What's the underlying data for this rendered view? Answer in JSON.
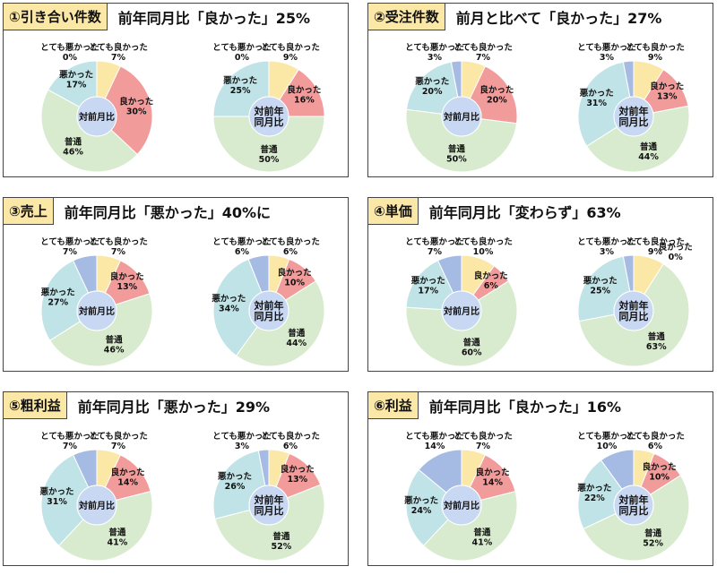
{
  "colors": {
    "very_good": "#fbe7a6",
    "good": "#f29b9b",
    "normal": "#d9ebcf",
    "bad": "#bfe3e6",
    "very_bad": "#a6bbe3",
    "center": "#c9d8f2"
  },
  "categories": [
    "とても良かった",
    "良かった",
    "普通",
    "悪かった",
    "とても悪かった"
  ],
  "center_labels": {
    "prev_year": [
      "対前年",
      "同月比"
    ],
    "prev_month": [
      "対前月比"
    ]
  },
  "panels": [
    {
      "tag": "①引き合い件数",
      "headline": "前年同月比「良かった」25%",
      "charts": [
        {
          "center": "prev_month",
          "values": [
            7,
            30,
            46,
            17,
            0
          ]
        },
        {
          "center": "prev_year",
          "values": [
            9,
            16,
            50,
            25,
            0
          ]
        }
      ]
    },
    {
      "tag": "②受注件数",
      "headline": "前月と比べて「良かった」27%",
      "charts": [
        {
          "center": "prev_month",
          "values": [
            7,
            20,
            50,
            20,
            3
          ]
        },
        {
          "center": "prev_year",
          "values": [
            9,
            13,
            44,
            31,
            3
          ]
        }
      ]
    },
    {
      "tag": "③売上",
      "headline": "前年同月比「悪かった」40%に",
      "charts": [
        {
          "center": "prev_month",
          "values": [
            7,
            13,
            46,
            27,
            7
          ]
        },
        {
          "center": "prev_year",
          "values": [
            6,
            10,
            44,
            34,
            6
          ]
        }
      ]
    },
    {
      "tag": "④単価",
      "headline": "前年同月比「変わらず」63%",
      "charts": [
        {
          "center": "prev_month",
          "values": [
            10,
            6,
            60,
            17,
            7
          ]
        },
        {
          "center": "prev_year",
          "values": [
            9,
            0,
            63,
            25,
            3
          ]
        }
      ]
    },
    {
      "tag": "⑤粗利益",
      "headline": "前年同月比「悪かった」29%",
      "charts": [
        {
          "center": "prev_month",
          "values": [
            7,
            14,
            41,
            31,
            7
          ]
        },
        {
          "center": "prev_year",
          "values": [
            6,
            13,
            52,
            26,
            3
          ]
        }
      ]
    },
    {
      "tag": "⑥利益",
      "headline": "前年同月比「良かった」16%",
      "charts": [
        {
          "center": "prev_month",
          "values": [
            7,
            14,
            41,
            24,
            14
          ]
        },
        {
          "center": "prev_year",
          "values": [
            6,
            10,
            52,
            22,
            10
          ]
        }
      ]
    }
  ],
  "chart_data": [
    {
      "type": "pie",
      "title": "①引き合い件数 対前月比",
      "categories": [
        "とても良かった",
        "良かった",
        "普通",
        "悪かった",
        "とても悪かった"
      ],
      "values": [
        7,
        30,
        46,
        17,
        0
      ]
    },
    {
      "type": "pie",
      "title": "①引き合い件数 対前年同月比",
      "categories": [
        "とても良かった",
        "良かった",
        "普通",
        "悪かった",
        "とても悪かった"
      ],
      "values": [
        9,
        16,
        50,
        25,
        0
      ]
    },
    {
      "type": "pie",
      "title": "②受注件数 対前月比",
      "categories": [
        "とても良かった",
        "良かった",
        "普通",
        "悪かった",
        "とても悪かった"
      ],
      "values": [
        7,
        20,
        50,
        20,
        3
      ]
    },
    {
      "type": "pie",
      "title": "②受注件数 対前年同月比",
      "categories": [
        "とても良かった",
        "良かった",
        "普通",
        "悪かった",
        "とても悪かった"
      ],
      "values": [
        9,
        13,
        44,
        31,
        3
      ]
    },
    {
      "type": "pie",
      "title": "③売上 対前月比",
      "categories": [
        "とても良かった",
        "良かった",
        "普通",
        "悪かった",
        "とても悪かった"
      ],
      "values": [
        7,
        13,
        46,
        27,
        7
      ]
    },
    {
      "type": "pie",
      "title": "③売上 対前年同月比",
      "categories": [
        "とても良かった",
        "良かった",
        "普通",
        "悪かった",
        "とても悪かった"
      ],
      "values": [
        6,
        10,
        44,
        34,
        6
      ]
    },
    {
      "type": "pie",
      "title": "④単価 対前月比",
      "categories": [
        "とても良かった",
        "良かった",
        "普通",
        "悪かった",
        "とても悪かった"
      ],
      "values": [
        10,
        6,
        60,
        17,
        7
      ]
    },
    {
      "type": "pie",
      "title": "④単価 対前年同月比",
      "categories": [
        "とても良かった",
        "良かった",
        "普通",
        "悪かった",
        "とても悪かった"
      ],
      "values": [
        9,
        0,
        63,
        25,
        3
      ]
    },
    {
      "type": "pie",
      "title": "⑤粗利益 対前月比",
      "categories": [
        "とても良かった",
        "良かった",
        "普通",
        "悪かった",
        "とても悪かった"
      ],
      "values": [
        7,
        14,
        41,
        31,
        7
      ]
    },
    {
      "type": "pie",
      "title": "⑤粗利益 対前年同月比",
      "categories": [
        "とても良かった",
        "良かった",
        "普通",
        "悪かった",
        "とても悪かった"
      ],
      "values": [
        6,
        13,
        52,
        26,
        3
      ]
    },
    {
      "type": "pie",
      "title": "⑥利益 対前月比",
      "categories": [
        "とても良かった",
        "良かった",
        "普通",
        "悪かった",
        "とても悪かった"
      ],
      "values": [
        7,
        14,
        41,
        24,
        14
      ]
    },
    {
      "type": "pie",
      "title": "⑥利益 対前年同月比",
      "categories": [
        "とても良かった",
        "良かった",
        "普通",
        "悪かった",
        "とても悪かった"
      ],
      "values": [
        6,
        10,
        52,
        22,
        10
      ]
    }
  ]
}
